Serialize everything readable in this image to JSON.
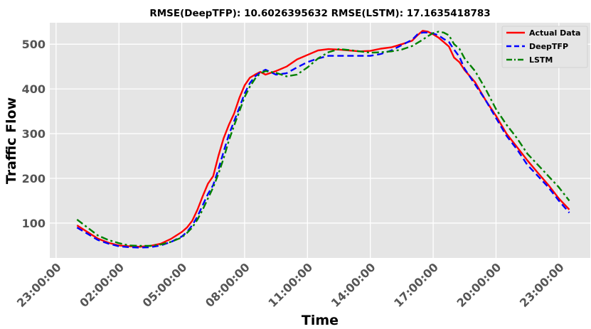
{
  "chart_data": {
    "type": "line",
    "title": "RMSE(DeepTFP): 10.6026395632  RMSE(LSTM): 17.1635418783",
    "xlabel": "Time",
    "ylabel": "Traffic Flow",
    "x_tick_labels": [
      "23:00:00",
      "02:00:00",
      "05:00:00",
      "08:00:00",
      "11:00:00",
      "14:00:00",
      "17:00:00",
      "20:00:00",
      "23:00:00"
    ],
    "x_tick_hours": [
      0,
      3,
      6,
      9,
      12,
      15,
      18,
      21,
      24
    ],
    "y_ticks": [
      100,
      200,
      300,
      400,
      500
    ],
    "xlim": [
      -0.3,
      25.5
    ],
    "ylim": [
      22,
      548
    ],
    "grid": true,
    "legend_position": "top-right",
    "x": [
      1,
      1.5,
      2,
      2.5,
      3,
      3.5,
      4,
      4.5,
      5,
      5.5,
      6,
      6.25,
      6.5,
      6.75,
      7,
      7.25,
      7.5,
      7.75,
      8,
      8.25,
      8.5,
      8.75,
      9,
      9.25,
      9.5,
      9.75,
      10,
      10.5,
      11,
      11.5,
      12,
      12.5,
      13,
      13.5,
      14,
      14.5,
      15,
      15.5,
      16,
      16.5,
      17,
      17.25,
      17.5,
      17.75,
      18,
      18.25,
      18.5,
      18.75,
      19,
      19.25,
      19.5,
      20,
      20.5,
      21,
      21.5,
      22,
      22.5,
      23,
      23.5,
      24,
      24.5
    ],
    "series": [
      {
        "name": "Actual Data",
        "color": "#ff0000",
        "dash": "solid",
        "values": [
          95,
          80,
          65,
          56,
          50,
          48,
          47,
          49,
          54,
          65,
          80,
          90,
          105,
          130,
          160,
          188,
          205,
          250,
          290,
          320,
          345,
          380,
          408,
          425,
          432,
          438,
          432,
          440,
          450,
          466,
          476,
          486,
          489,
          488,
          486,
          484,
          485,
          490,
          493,
          500,
          508,
          520,
          530,
          528,
          522,
          515,
          505,
          495,
          470,
          460,
          442,
          415,
          375,
          340,
          300,
          270,
          240,
          212,
          185,
          155,
          130
        ]
      },
      {
        "name": "DeepTFP",
        "color": "#0000ff",
        "dash": "dash",
        "values": [
          90,
          76,
          62,
          54,
          48,
          46,
          45,
          46,
          50,
          58,
          70,
          80,
          95,
          115,
          140,
          165,
          185,
          220,
          260,
          298,
          328,
          358,
          390,
          413,
          428,
          437,
          443,
          432,
          435,
          448,
          460,
          468,
          474,
          474,
          474,
          474,
          474,
          478,
          486,
          498,
          510,
          522,
          526,
          526,
          524,
          520,
          512,
          505,
          488,
          472,
          445,
          410,
          375,
          335,
          295,
          265,
          230,
          205,
          180,
          150,
          123
        ]
      },
      {
        "name": "LSTM",
        "color": "#008000",
        "dash": "dashdot",
        "values": [
          108,
          90,
          72,
          62,
          55,
          50,
          49,
          49,
          52,
          58,
          68,
          78,
          90,
          108,
          130,
          155,
          180,
          210,
          245,
          285,
          318,
          350,
          382,
          405,
          423,
          435,
          440,
          436,
          428,
          432,
          448,
          468,
          482,
          489,
          487,
          484,
          481,
          482,
          484,
          488,
          496,
          503,
          510,
          518,
          525,
          528,
          526,
          520,
          500,
          490,
          468,
          440,
          400,
          355,
          320,
          290,
          255,
          230,
          205,
          180,
          150
        ]
      }
    ]
  }
}
